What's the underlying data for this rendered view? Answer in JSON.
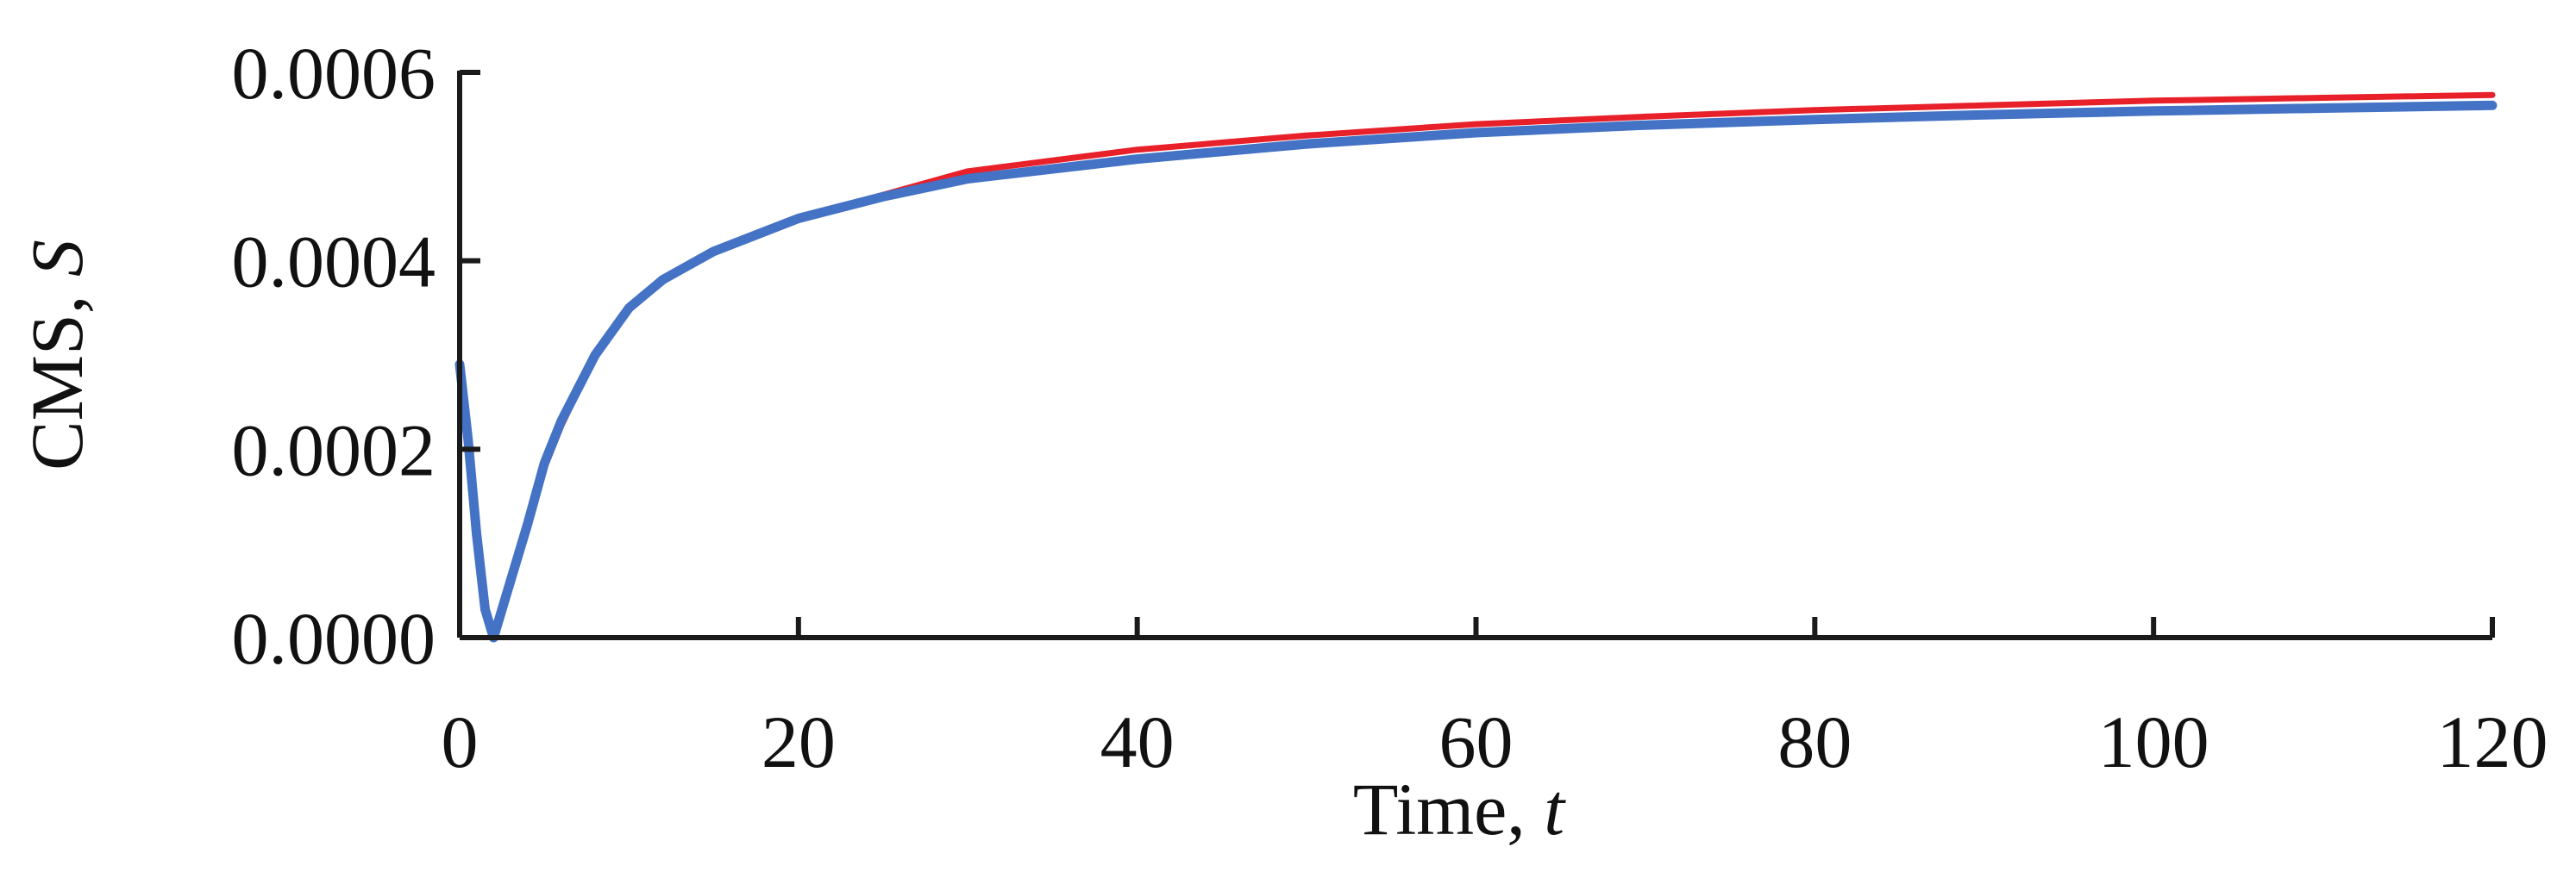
{
  "chart_data": {
    "type": "line",
    "title": "",
    "xlabel": {
      "text": "Time, ",
      "var": "t"
    },
    "ylabel": {
      "text": "CMS, ",
      "var": "S"
    },
    "xlim": [
      0,
      120
    ],
    "ylim": [
      0,
      0.0006
    ],
    "x_ticks": [
      0,
      20,
      40,
      60,
      80,
      100,
      120
    ],
    "x_tick_labels": [
      "0",
      "20",
      "40",
      "60",
      "80",
      "100",
      "120"
    ],
    "y_ticks": [
      0,
      0.0002,
      0.0004,
      0.0006
    ],
    "y_tick_labels": [
      "0.0000",
      "0.0002",
      "0.0004",
      "0.0006"
    ],
    "grid": false,
    "legend": "none",
    "series": [
      {
        "color": "#e8202a",
        "x": [
          0,
          0.5,
          1,
          1.5,
          2,
          3,
          4,
          5,
          6,
          8,
          10,
          12,
          15,
          20,
          25,
          30,
          40,
          50,
          60,
          70,
          80,
          90,
          100,
          110,
          120
        ],
        "y": [
          0.00029,
          0.00021,
          0.00011,
          3e-05,
          0.0,
          6e-05,
          0.00012,
          0.00018,
          0.000225,
          0.0003,
          0.00035,
          0.00038,
          0.00041,
          0.000445,
          0.00047,
          0.000495,
          0.000518,
          0.000533,
          0.000545,
          0.000553,
          0.00056,
          0.000565,
          0.00057,
          0.000573,
          0.000576
        ]
      },
      {
        "color": "#4472c4",
        "x": [
          0,
          0.5,
          1,
          1.5,
          2,
          3,
          4,
          5,
          6,
          8,
          10,
          12,
          15,
          20,
          25,
          30,
          40,
          50,
          60,
          70,
          80,
          90,
          100,
          110,
          120
        ],
        "y": [
          0.00029,
          0.00021,
          0.00011,
          3e-05,
          0.0,
          6e-05,
          0.00012,
          0.000185,
          0.00023,
          0.0003,
          0.00035,
          0.00038,
          0.00041,
          0.000445,
          0.000468,
          0.000487,
          0.000508,
          0.000524,
          0.000536,
          0.000544,
          0.00055,
          0.000555,
          0.000559,
          0.000562,
          0.000565
        ]
      }
    ]
  }
}
